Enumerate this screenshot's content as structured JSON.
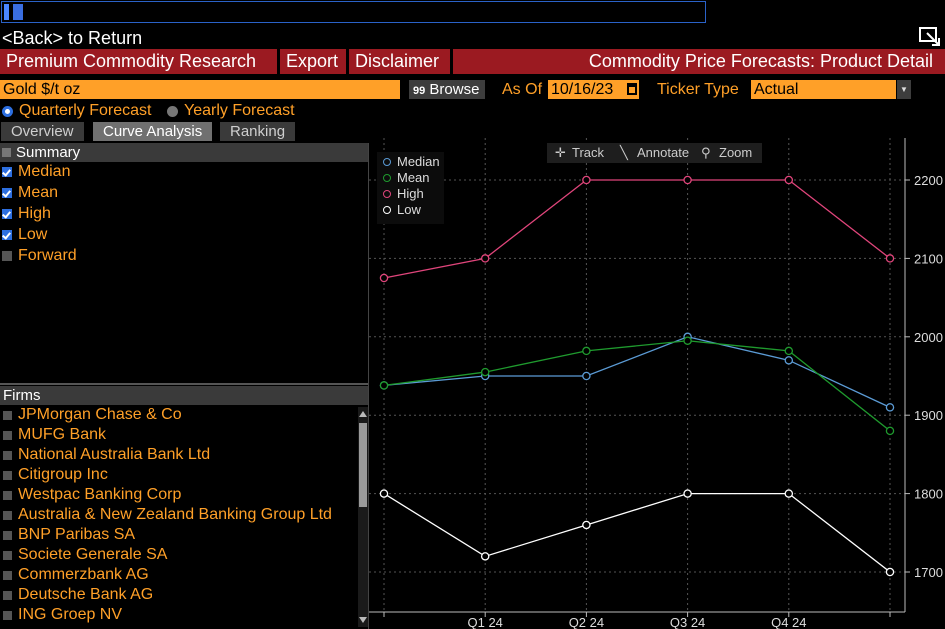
{
  "back_line": "<Back> to Return",
  "menu": {
    "items": [
      "Premium Commodity Research",
      "Export",
      "Disclaimer"
    ],
    "title": "Commodity Price Forecasts: Product Detail"
  },
  "security": {
    "value": "Gold $/t oz",
    "browse_label": "Browse",
    "browse_icon": "99",
    "as_of_label": "As Of",
    "as_of_value": "10/16/23",
    "ticker_type_label": "Ticker Type",
    "ticker_type_value": "Actual"
  },
  "forecast_radio": {
    "quarterly_label": "Quarterly Forecast",
    "yearly_label": "Yearly Forecast",
    "selected": "quarterly"
  },
  "tabs": [
    {
      "label": "Overview",
      "active": false
    },
    {
      "label": "Curve Analysis",
      "active": true
    },
    {
      "label": "Ranking",
      "active": false
    }
  ],
  "summary": {
    "header": "Summary",
    "items": [
      {
        "label": "Median",
        "checked": true
      },
      {
        "label": "Mean",
        "checked": true
      },
      {
        "label": "High",
        "checked": true
      },
      {
        "label": "Low",
        "checked": true
      },
      {
        "label": "Forward",
        "checked": false
      }
    ]
  },
  "firms": {
    "header": "Firms",
    "items": [
      "JPMorgan Chase & Co",
      "MUFG Bank",
      "National Australia Bank Ltd",
      "Citigroup Inc",
      "Westpac Banking Corp",
      "Australia & New Zealand Banking Group Ltd",
      "BNP Paribas SA",
      "Societe Generale SA",
      "Commerzbank AG",
      "Deutsche Bank AG",
      "ING Groep NV"
    ]
  },
  "chart_tools": {
    "track": "Track",
    "annotate": "Annotate",
    "zoom": "Zoom"
  },
  "chart_data": {
    "type": "line",
    "x": [
      "",
      "Q1 24",
      "Q2 24",
      "Q3 24",
      "Q4 24",
      ""
    ],
    "ylim": [
      1650,
      2250
    ],
    "yticks": [
      1700,
      1800,
      1900,
      2000,
      2100,
      2200
    ],
    "grid": true,
    "legend_position": "top-left",
    "series": [
      {
        "name": "Median",
        "color": "#5b9bd5",
        "values": [
          1938,
          1950,
          1950,
          2000,
          1970,
          1910
        ]
      },
      {
        "name": "Mean",
        "color": "#1f9b2e",
        "values": [
          1938,
          1955,
          1982,
          1995,
          1982,
          1880
        ]
      },
      {
        "name": "High",
        "color": "#e0457b",
        "values": [
          2075,
          2100,
          2200,
          2200,
          2200,
          2100
        ]
      },
      {
        "name": "Low",
        "color": "#ffffff",
        "values": [
          1800,
          1720,
          1760,
          1800,
          1800,
          1700
        ]
      }
    ]
  }
}
